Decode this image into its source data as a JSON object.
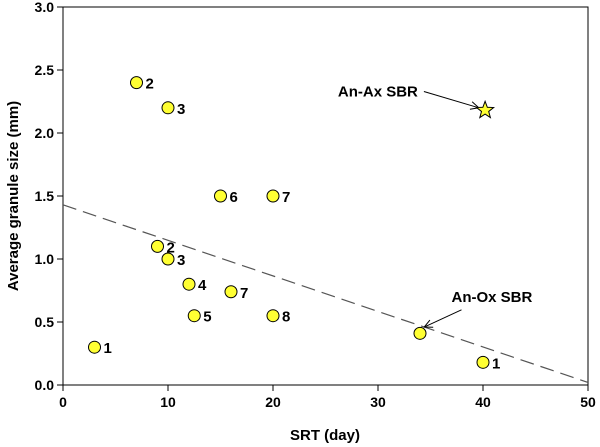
{
  "chart_data": {
    "type": "scatter",
    "xlabel": "SRT (day)",
    "ylabel": "Average granule size (mm)",
    "xlim": [
      0,
      50
    ],
    "ylim": [
      0.0,
      3.0
    ],
    "xticks": [
      "0",
      "10",
      "20",
      "30",
      "40",
      "50"
    ],
    "yticks": [
      "0.0",
      "0.5",
      "1.0",
      "1.5",
      "2.0",
      "2.5",
      "3.0"
    ],
    "grid": false,
    "marker_color": "#ffff33",
    "points": [
      {
        "x": 7,
        "y": 2.4,
        "label": "2"
      },
      {
        "x": 10,
        "y": 2.2,
        "label": "3"
      },
      {
        "x": 15,
        "y": 1.5,
        "label": "6"
      },
      {
        "x": 20,
        "y": 1.5,
        "label": "7"
      },
      {
        "x": 9,
        "y": 1.1,
        "label": "2"
      },
      {
        "x": 10,
        "y": 1.0,
        "label": "3"
      },
      {
        "x": 12,
        "y": 0.8,
        "label": "4"
      },
      {
        "x": 16,
        "y": 0.74,
        "label": "7"
      },
      {
        "x": 12.5,
        "y": 0.55,
        "label": "5"
      },
      {
        "x": 20,
        "y": 0.55,
        "label": "8"
      },
      {
        "x": 3,
        "y": 0.3,
        "label": "1"
      },
      {
        "x": 34,
        "y": 0.41,
        "label": ""
      },
      {
        "x": 40,
        "y": 0.18,
        "label": "1"
      }
    ],
    "special_point": {
      "x": 40.2,
      "y": 2.18,
      "marker": "star"
    },
    "trendline": {
      "style": "dashed",
      "x": [
        0,
        50
      ],
      "y": [
        1.43,
        0.02
      ]
    },
    "annotations": [
      {
        "text": "An-Ax SBR",
        "tx": 33.8,
        "ty": 2.29,
        "ax": 39.6,
        "ay": 2.2
      },
      {
        "text": "An-Ox SBR",
        "tx": 37.0,
        "ty": 0.66,
        "ax": 34.4,
        "ay": 0.46
      }
    ]
  }
}
